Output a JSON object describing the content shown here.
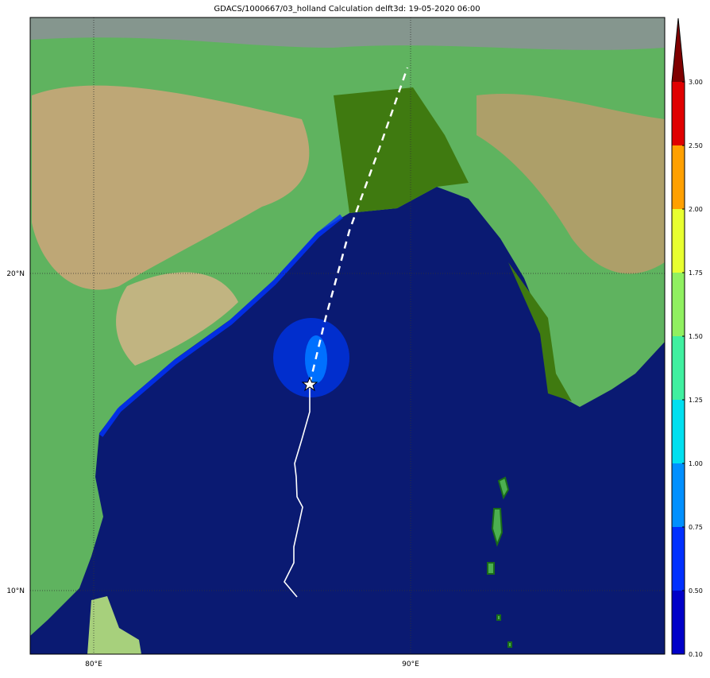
{
  "map": {
    "title": "GDACS/1000667/03_holland Calculation delft3d: 19-05-2020 06:00",
    "lon_labels": [
      "80°E",
      "90°E"
    ],
    "lat_labels": [
      "20°N",
      "10°N"
    ]
  },
  "colorbar": {
    "ticks": [
      {
        "value": 0.1,
        "label": "0.10"
      },
      {
        "value": 0.5,
        "label": "0.50"
      },
      {
        "value": 0.75,
        "label": "0.75"
      },
      {
        "value": 1.0,
        "label": "1.00"
      },
      {
        "value": 1.25,
        "label": "1.25"
      },
      {
        "value": 1.5,
        "label": "1.50"
      },
      {
        "value": 1.75,
        "label": "1.75"
      },
      {
        "value": 2.0,
        "label": "2.00"
      },
      {
        "value": 2.5,
        "label": "2.50"
      },
      {
        "value": 3.0,
        "label": "3.00"
      }
    ],
    "colors": [
      "#0000c8",
      "#0030ff",
      "#0090ff",
      "#00e0f0",
      "#40f0a0",
      "#90f060",
      "#e8ff30",
      "#ffa000",
      "#e00000",
      "#800000"
    ]
  }
}
